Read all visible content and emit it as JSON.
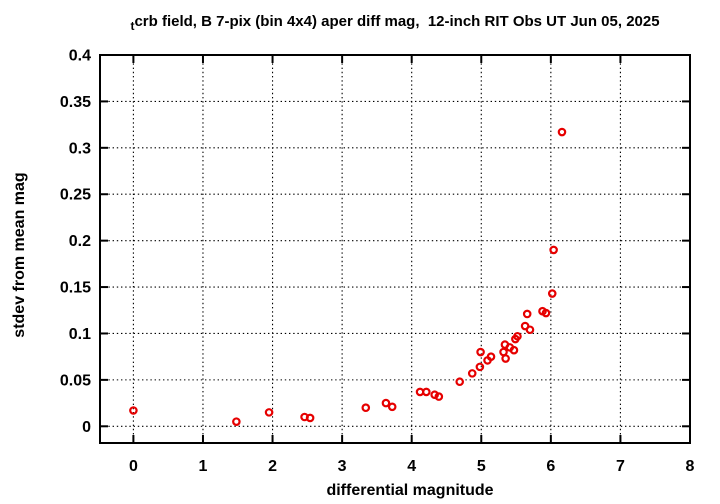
{
  "figure": {
    "background": "#ffffff",
    "axis_color": "#000000"
  },
  "chart_data": {
    "type": "scatter",
    "title": {
      "subscript": "t",
      "text": "crb field, B 7-pix (bin 4x4) aper diff mag,  12-inch RIT Obs UT Jun 05, 2025"
    },
    "xlabel": "differential magnitude",
    "ylabel": "stdev from mean mag",
    "xlim": [
      -0.48,
      8
    ],
    "ylim": [
      -0.018,
      0.4
    ],
    "xtick_values": [
      0,
      1,
      2,
      3,
      4,
      5,
      6,
      7,
      8
    ],
    "xtick_labels": [
      "0",
      "1",
      "2",
      "3",
      "4",
      "5",
      "6",
      "7",
      "8"
    ],
    "ytick_values": [
      0,
      0.05,
      0.1,
      0.15,
      0.2,
      0.25,
      0.3,
      0.35,
      0.4
    ],
    "ytick_labels": [
      "0",
      "0.05",
      "0.1",
      "0.15",
      "0.2",
      "0.25",
      "0.3",
      "0.35",
      "0.4"
    ],
    "grid": "dotted",
    "legend": "none",
    "marker": {
      "shape": "open-circle",
      "color": "#e60000",
      "radius": 3.2,
      "stroke_width": 2.2
    },
    "points": [
      [
        0.0,
        0.017
      ],
      [
        1.48,
        0.005
      ],
      [
        1.95,
        0.015
      ],
      [
        2.46,
        0.01
      ],
      [
        2.54,
        0.009
      ],
      [
        3.34,
        0.02
      ],
      [
        3.63,
        0.025
      ],
      [
        3.72,
        0.021
      ],
      [
        4.12,
        0.037
      ],
      [
        4.21,
        0.037
      ],
      [
        4.33,
        0.034
      ],
      [
        4.39,
        0.032
      ],
      [
        4.69,
        0.048
      ],
      [
        4.87,
        0.057
      ],
      [
        4.98,
        0.064
      ],
      [
        4.99,
        0.08
      ],
      [
        5.09,
        0.071
      ],
      [
        5.14,
        0.075
      ],
      [
        5.32,
        0.08
      ],
      [
        5.35,
        0.073
      ],
      [
        5.34,
        0.088
      ],
      [
        5.41,
        0.085
      ],
      [
        5.47,
        0.082
      ],
      [
        5.49,
        0.094
      ],
      [
        5.52,
        0.097
      ],
      [
        5.63,
        0.108
      ],
      [
        5.7,
        0.104
      ],
      [
        5.66,
        0.121
      ],
      [
        5.88,
        0.124
      ],
      [
        5.93,
        0.122
      ],
      [
        6.02,
        0.143
      ],
      [
        6.04,
        0.19
      ],
      [
        6.16,
        0.317
      ]
    ]
  }
}
